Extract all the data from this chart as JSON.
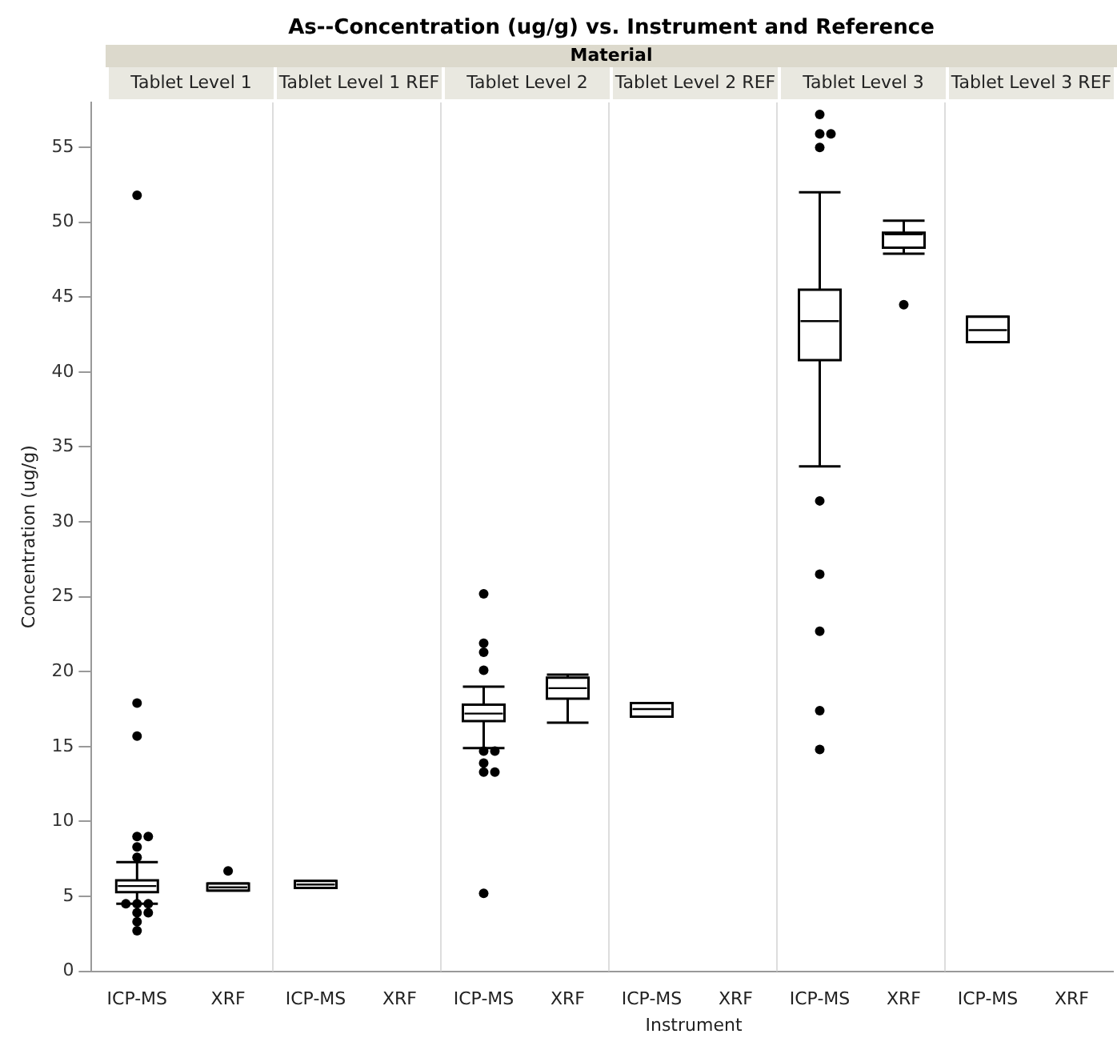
{
  "chart_data": [
    {
      "type": "box",
      "title": "Tablet Level 1",
      "categories": [
        "ICP-MS",
        "XRF"
      ],
      "boxes": [
        {
          "low": 4.5,
          "q1": 5.28,
          "median": 5.69,
          "q3": 6.07,
          "high": 7.29,
          "outliers": [
            51.8,
            17.9,
            15.7,
            9.0,
            9.0,
            8.3,
            7.6,
            4.5,
            4.5,
            4.5,
            3.9,
            3.9,
            3.3,
            2.7
          ]
        },
        {
          "low": 5.39,
          "q1": 5.39,
          "median": 5.6,
          "q3": 5.86,
          "high": 5.86,
          "outliers": [
            6.7
          ]
        }
      ],
      "ylim": [
        0,
        58
      ],
      "yticks": [
        0,
        5,
        10,
        15,
        20,
        25,
        30,
        35,
        40,
        45,
        50,
        55
      ],
      "ylabel": "Concentration (ug/g)",
      "annotations": [
        "As--Concentration (ug/g) vs. Instrument and Reference",
        "Material"
      ]
    },
    {
      "type": "box",
      "title": "Tablet Level 1 REF",
      "categories": [
        "ICP-MS",
        "XRF"
      ],
      "boxes": [
        {
          "low": 5.56,
          "q1": 5.56,
          "median": 5.79,
          "q3": 6.03,
          "high": 6.03
        },
        null
      ],
      "ylim": [
        0,
        58
      ],
      "tick_labels": "x"
    },
    {
      "type": "box",
      "title": "Tablet Level 2",
      "categories": [
        "ICP-MS",
        "XRF"
      ],
      "boxes": [
        {
          "low": 14.9,
          "q1": 16.7,
          "median": 17.2,
          "q3": 17.8,
          "high": 19.0,
          "outliers": [
            25.2,
            21.9,
            21.3,
            20.1,
            14.7,
            14.7,
            13.9,
            13.3,
            13.3,
            5.2
          ]
        },
        {
          "low": 16.6,
          "q1": 18.2,
          "median": 18.9,
          "q3": 19.6,
          "high": 19.8
        }
      ],
      "ylim": [
        0,
        58
      ],
      "tick_labels": "x"
    },
    {
      "type": "box",
      "title": "Tablet Level 2 REF",
      "xlabel": "Instrument",
      "categories": [
        "ICP-MS",
        "XRF"
      ],
      "boxes": [
        {
          "low": 17.0,
          "q1": 17.0,
          "median": 17.5,
          "q3": 17.9,
          "high": 17.9
        },
        null
      ],
      "ylim": [
        0,
        58
      ],
      "tick_labels": "x"
    },
    {
      "type": "box",
      "title": "Tablet Level 3",
      "categories": [
        "ICP-MS",
        "XRF"
      ],
      "boxes": [
        {
          "low": 33.7,
          "q1": 40.8,
          "median": 43.4,
          "q3": 45.5,
          "high": 52.0,
          "outliers": [
            57.2,
            55.9,
            55.9,
            55.0,
            31.4,
            26.5,
            22.7,
            17.4,
            14.8
          ]
        },
        {
          "low": 47.9,
          "q1": 48.3,
          "median": 49.2,
          "q3": 49.3,
          "high": 50.1,
          "outliers": [
            44.5
          ]
        }
      ],
      "ylim": [
        0,
        58
      ],
      "tick_labels": "x"
    },
    {
      "type": "box",
      "title": "Tablet Level 3 REF",
      "categories": [
        "ICP-MS",
        "XRF"
      ],
      "boxes": [
        {
          "low": 42.0,
          "q1": 42.0,
          "median": 42.8,
          "q3": 43.7,
          "high": 43.7
        },
        null
      ],
      "ylim": [
        0,
        58
      ],
      "tick_labels": "x"
    }
  ]
}
